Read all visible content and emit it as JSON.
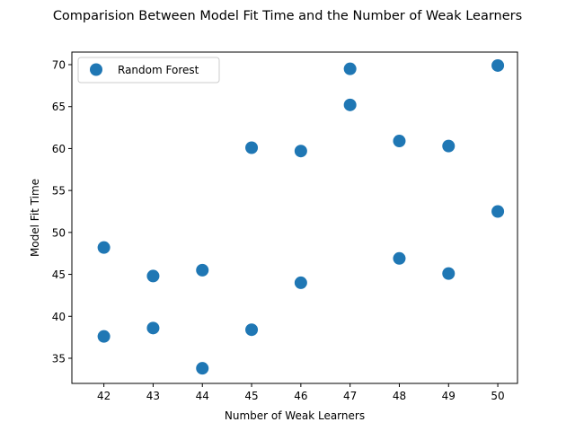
{
  "chart_data": {
    "type": "scatter",
    "title": "Comparision Between Model Fit Time and the Number of Weak Learners",
    "xlabel": "Number of Weak Learners",
    "ylabel": "Model Fit Time",
    "xlim": [
      41.35,
      50.4
    ],
    "ylim": [
      32,
      71.5
    ],
    "xticks": [
      42,
      43,
      44,
      45,
      46,
      47,
      48,
      49,
      50
    ],
    "yticks": [
      35,
      40,
      45,
      50,
      55,
      60,
      65,
      70
    ],
    "grid": false,
    "legend_position": "top-left",
    "series": [
      {
        "name": "Random Forest",
        "color": "#1f77b4",
        "points": [
          {
            "x": 42,
            "y": 48.2
          },
          {
            "x": 42,
            "y": 37.6
          },
          {
            "x": 43,
            "y": 44.8
          },
          {
            "x": 43,
            "y": 38.6
          },
          {
            "x": 44,
            "y": 45.5
          },
          {
            "x": 44,
            "y": 33.8
          },
          {
            "x": 45,
            "y": 60.1
          },
          {
            "x": 45,
            "y": 38.4
          },
          {
            "x": 46,
            "y": 59.7
          },
          {
            "x": 46,
            "y": 44.0
          },
          {
            "x": 47,
            "y": 69.5
          },
          {
            "x": 47,
            "y": 65.2
          },
          {
            "x": 48,
            "y": 60.9
          },
          {
            "x": 48,
            "y": 46.9
          },
          {
            "x": 49,
            "y": 60.3
          },
          {
            "x": 49,
            "y": 45.1
          },
          {
            "x": 50,
            "y": 69.9
          },
          {
            "x": 50,
            "y": 52.5
          }
        ]
      }
    ]
  }
}
